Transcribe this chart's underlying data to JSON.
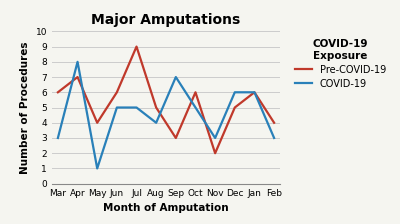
{
  "months": [
    "Mar",
    "Apr",
    "May",
    "Jun",
    "Jul",
    "Aug",
    "Sep",
    "Oct",
    "Nov",
    "Dec",
    "Jan",
    "Feb"
  ],
  "pre_covid": [
    6,
    7,
    4,
    6,
    9,
    5,
    3,
    6,
    2,
    5,
    6,
    4
  ],
  "covid": [
    3,
    8,
    1,
    5,
    5,
    4,
    7,
    5,
    3,
    6,
    6,
    3
  ],
  "pre_covid_color": "#c0392b",
  "covid_color": "#2980b9",
  "title": "Major Amputations",
  "xlabel": "Month of Amputation",
  "ylabel": "Number of Procedures",
  "ylim": [
    0,
    10
  ],
  "yticks": [
    0,
    1,
    2,
    3,
    4,
    5,
    6,
    7,
    8,
    9,
    10
  ],
  "legend_title": "COVID-19\nExposure",
  "legend_pre": "Pre-COVID-19",
  "legend_covid": "COVID-19",
  "title_fontsize": 10,
  "axis_label_fontsize": 7.5,
  "tick_fontsize": 6.5,
  "legend_fontsize": 7,
  "legend_title_fontsize": 7.5,
  "linewidth": 1.6,
  "background_color": "#f5f5f0"
}
